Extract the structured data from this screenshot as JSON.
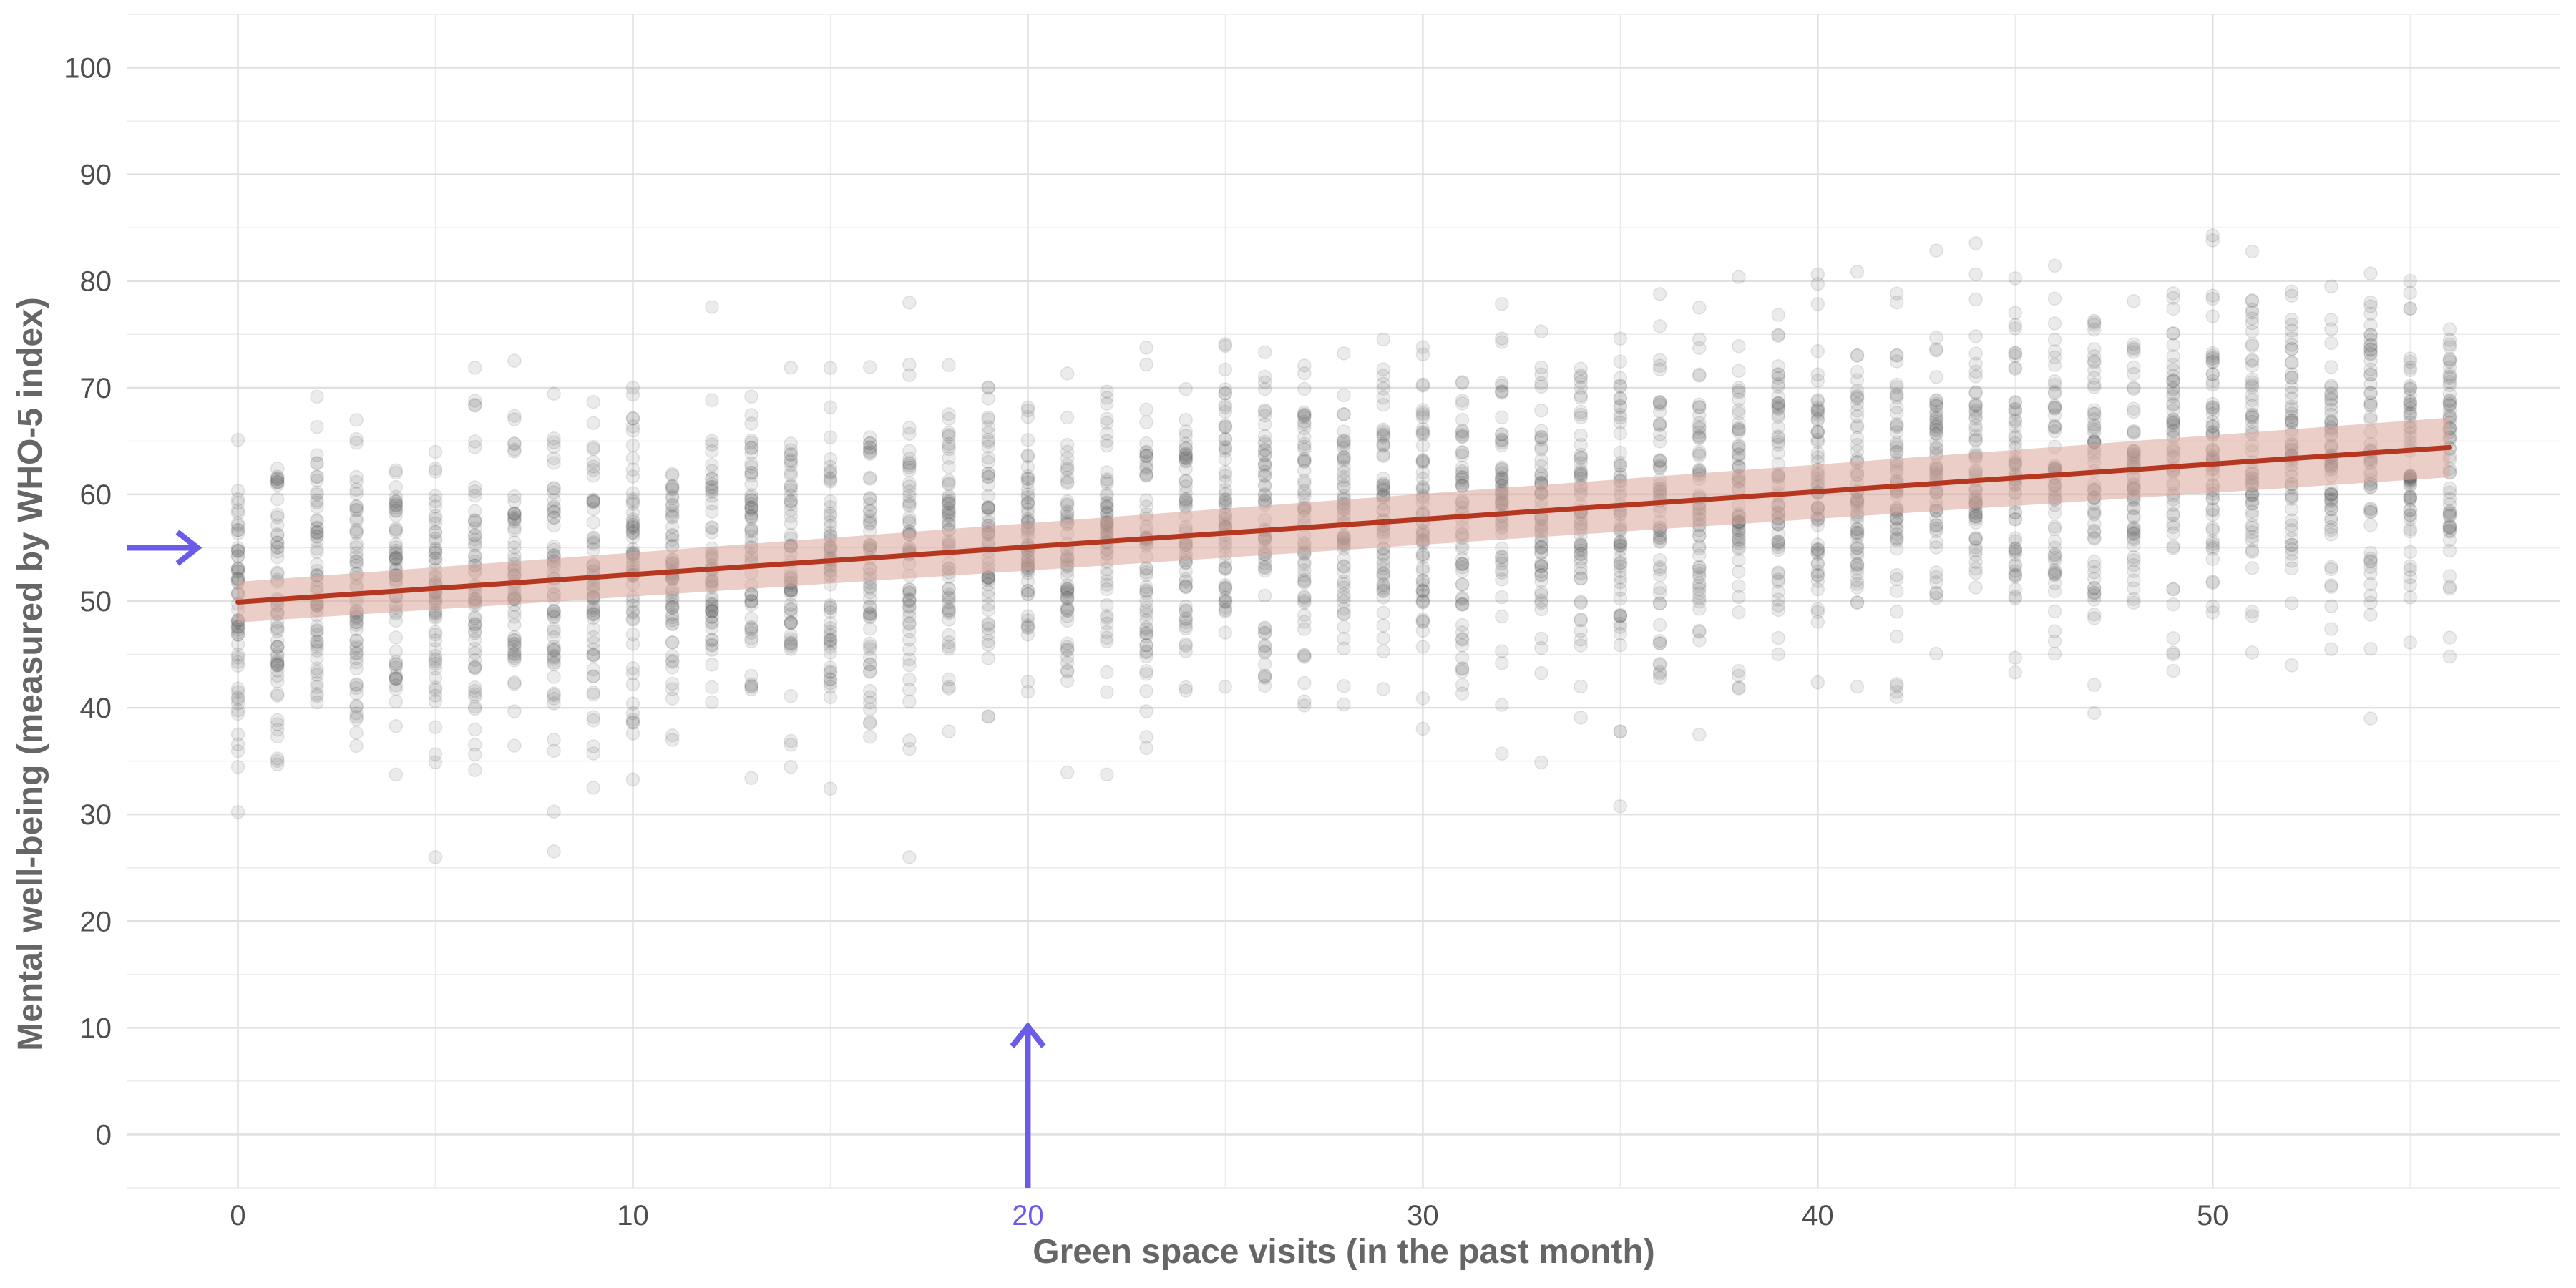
{
  "chart_data": {
    "type": "scatter",
    "title": "",
    "xlabel": "Green space visits (in the past month)",
    "ylabel": "Mental well-being (measured by WHO-5 index)",
    "xlim": [
      -2.8,
      58.8
    ],
    "ylim": [
      -5,
      105
    ],
    "x_ticks": [
      0,
      10,
      20,
      30,
      40,
      50
    ],
    "x_tick_labels": [
      "0",
      "10",
      "20",
      "30",
      "40",
      "50"
    ],
    "y_ticks": [
      0,
      10,
      20,
      30,
      40,
      50,
      60,
      70,
      80,
      90,
      100
    ],
    "y_tick_labels": [
      "0",
      "10",
      "20",
      "30",
      "40",
      "50",
      "60",
      "70",
      "80",
      "90",
      "100"
    ],
    "grid": true,
    "points": {
      "x_values": "integers 0 to 56",
      "color": "#595959",
      "opacity": 0.12,
      "spread_sd": 7.5,
      "samples_per_x": 60
    },
    "fit_line": {
      "x": [
        0,
        56
      ],
      "y": [
        49.9,
        64.4
      ],
      "ci_lower": [
        48.0,
        61.6
      ],
      "ci_upper": [
        51.8,
        67.2
      ],
      "color": "#b5371f",
      "band_color": "#dda59b"
    },
    "annotations": {
      "y_arrow_at": 55,
      "x_arrow_at": 20,
      "x_arrow_top": 10,
      "arrow_color": "#6b5ce7",
      "highlighted_x_tick": "20"
    }
  }
}
